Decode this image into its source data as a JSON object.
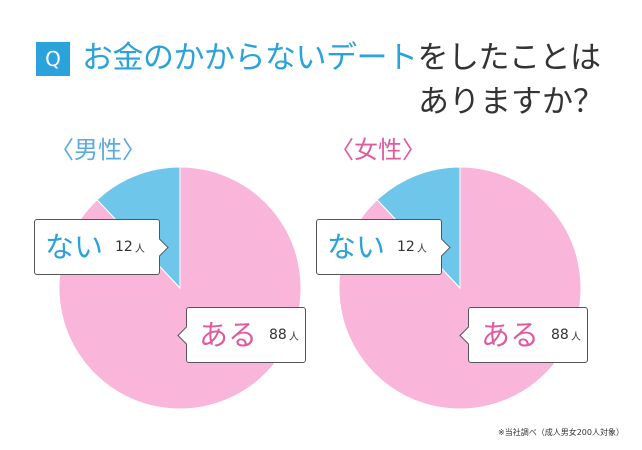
{
  "question": {
    "badge": "Q",
    "line1_highlight": "お金のかからないデート",
    "line1_rest": "をしたことは",
    "line2": "ありますか？"
  },
  "footnote": "※当社調べ（成人男女200人対象）",
  "colors": {
    "aru": "#f9b5da",
    "nai": "#6ec7eb"
  },
  "chart_data": [
    {
      "type": "pie",
      "title": "〈男性〉",
      "categories": [
        "ある",
        "ない"
      ],
      "values": [
        88,
        12
      ],
      "unit": "人",
      "labels": [
        {
          "word": "ある",
          "count": "88",
          "unit": "人"
        },
        {
          "word": "ない",
          "count": "12",
          "unit": "人"
        }
      ]
    },
    {
      "type": "pie",
      "title": "〈女性〉",
      "categories": [
        "ある",
        "ない"
      ],
      "values": [
        88,
        12
      ],
      "unit": "人",
      "labels": [
        {
          "word": "ある",
          "count": "88",
          "unit": "人"
        },
        {
          "word": "ない",
          "count": "12",
          "unit": "人"
        }
      ]
    }
  ]
}
